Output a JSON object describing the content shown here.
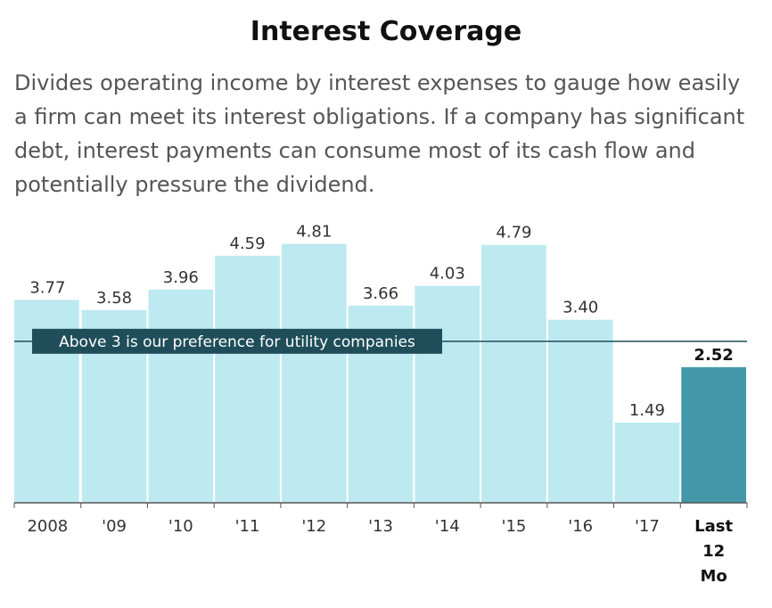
{
  "chart_data": {
    "type": "bar",
    "title": "Interest Coverage",
    "subtitle": "Divides operating income by interest expenses to gauge how easily a firm can meet its interest obligations. If a company has significant debt, interest payments can consume most of its cash flow and potentially pressure the dividend.",
    "categories": [
      "2008",
      "'09",
      "'10",
      "'11",
      "'12",
      "'13",
      "'14",
      "'15",
      "'16",
      "'17",
      "Last 12 Mo"
    ],
    "values": [
      3.77,
      3.58,
      3.96,
      4.59,
      4.81,
      3.66,
      4.03,
      4.79,
      3.4,
      1.49,
      2.52
    ],
    "value_labels": [
      "3.77",
      "3.58",
      "3.96",
      "4.59",
      "4.81",
      "3.66",
      "4.03",
      "4.79",
      "3.40",
      "1.49",
      "2.52"
    ],
    "highlight_index": 10,
    "reference_line": {
      "value": 3,
      "label": "Above 3 is our preference for utility companies"
    },
    "ylim": [
      0,
      5.1
    ],
    "grid": false,
    "colors": {
      "bar": "#bde9f1",
      "highlight": "#4297a9",
      "reference": "#1f4e5a",
      "axis": "#555555"
    }
  }
}
